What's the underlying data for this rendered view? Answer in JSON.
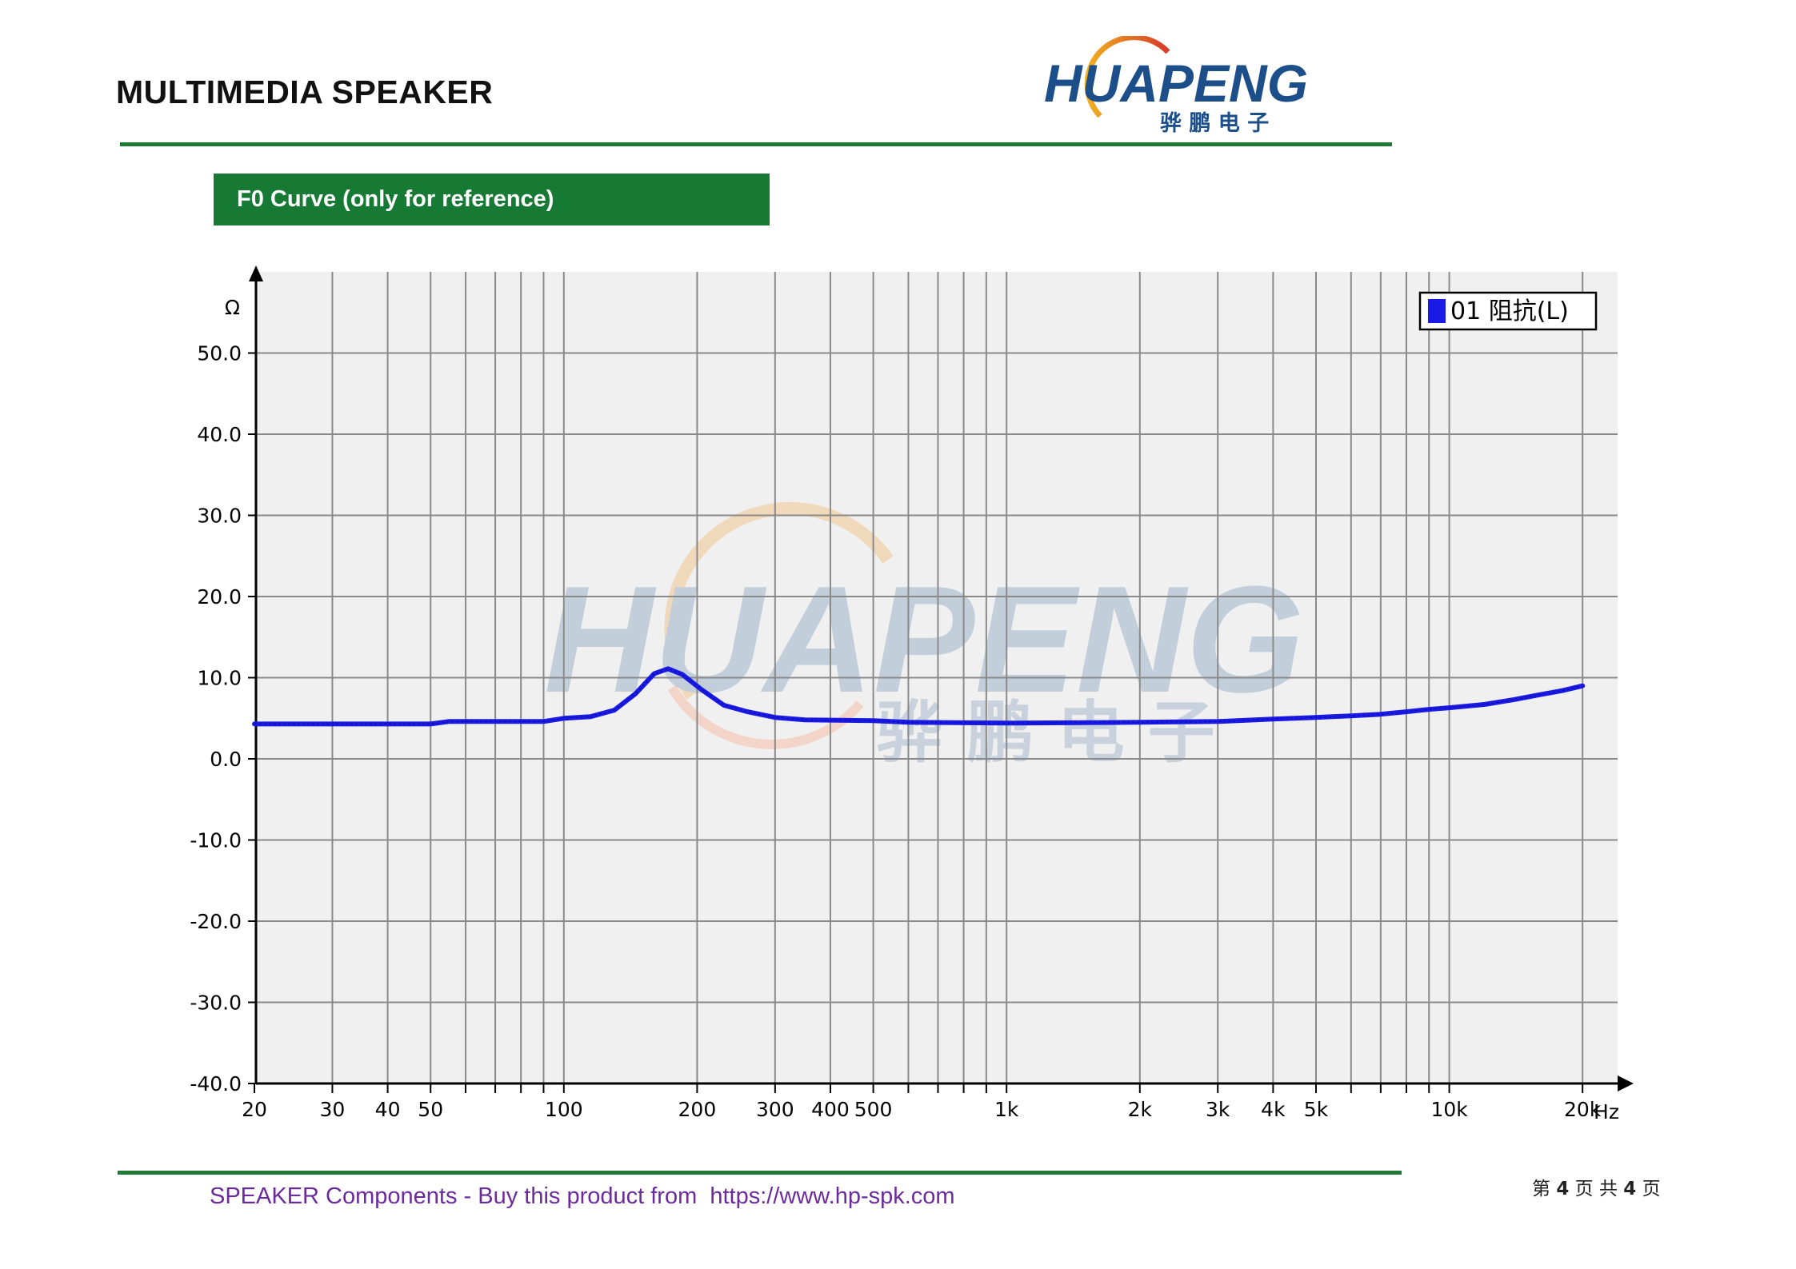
{
  "header": {
    "doc_title": "MULTIMEDIA SPEAKER",
    "logo_text_latin": "HUAPENG",
    "logo_text_cn": "骅 鹏 电 子"
  },
  "section": {
    "title": "F0 Curve (only for reference)"
  },
  "chart_data": {
    "type": "line",
    "x_scale": "log",
    "xlabel": "Hz",
    "ylabel": "Ω",
    "xlim": [
      20,
      24000
    ],
    "ylim": [
      -40,
      60
    ],
    "x_ticks": [
      {
        "value": 20,
        "label": "20"
      },
      {
        "value": 30,
        "label": "30"
      },
      {
        "value": 40,
        "label": "40"
      },
      {
        "value": 50,
        "label": "50"
      },
      {
        "value": 100,
        "label": "100"
      },
      {
        "value": 200,
        "label": "200"
      },
      {
        "value": 300,
        "label": "300"
      },
      {
        "value": 400,
        "label": "400"
      },
      {
        "value": 500,
        "label": "500"
      },
      {
        "value": 1000,
        "label": "1k"
      },
      {
        "value": 2000,
        "label": "2k"
      },
      {
        "value": 3000,
        "label": "3k"
      },
      {
        "value": 4000,
        "label": "4k"
      },
      {
        "value": 5000,
        "label": "5k"
      },
      {
        "value": 10000,
        "label": "10k"
      },
      {
        "value": 20000,
        "label": "20k"
      }
    ],
    "x_minor_gridlines": [
      60,
      70,
      80,
      90,
      600,
      700,
      800,
      900,
      6000,
      7000,
      8000,
      9000
    ],
    "y_ticks": [
      {
        "value": 50,
        "label": "50.0"
      },
      {
        "value": 40,
        "label": "40.0"
      },
      {
        "value": 30,
        "label": "30.0"
      },
      {
        "value": 20,
        "label": "20.0"
      },
      {
        "value": 10,
        "label": "10.0"
      },
      {
        "value": 0,
        "label": "0.0"
      },
      {
        "value": -10,
        "label": "-10.0"
      },
      {
        "value": -20,
        "label": "-20.0"
      },
      {
        "value": -30,
        "label": "-30.0"
      },
      {
        "value": -40,
        "label": "-40.0"
      }
    ],
    "grid": true,
    "legend": {
      "position": "top-right"
    },
    "series": [
      {
        "name": "01 阻抗(L)",
        "color": "#1a1ae6",
        "points": [
          [
            20,
            4.3
          ],
          [
            30,
            4.3
          ],
          [
            40,
            4.3
          ],
          [
            50,
            4.3
          ],
          [
            55,
            4.6
          ],
          [
            70,
            4.6
          ],
          [
            90,
            4.6
          ],
          [
            100,
            5.0
          ],
          [
            115,
            5.2
          ],
          [
            130,
            6.0
          ],
          [
            145,
            8.0
          ],
          [
            160,
            10.5
          ],
          [
            172,
            11.1
          ],
          [
            185,
            10.4
          ],
          [
            205,
            8.5
          ],
          [
            230,
            6.6
          ],
          [
            260,
            5.8
          ],
          [
            300,
            5.1
          ],
          [
            350,
            4.8
          ],
          [
            500,
            4.7
          ],
          [
            600,
            4.5
          ],
          [
            1000,
            4.4
          ],
          [
            2000,
            4.5
          ],
          [
            3000,
            4.6
          ],
          [
            4000,
            4.9
          ],
          [
            5000,
            5.1
          ],
          [
            6000,
            5.3
          ],
          [
            7000,
            5.5
          ],
          [
            8000,
            5.8
          ],
          [
            9000,
            6.1
          ],
          [
            10000,
            6.3
          ],
          [
            12000,
            6.7
          ],
          [
            14000,
            7.3
          ],
          [
            16000,
            7.9
          ],
          [
            18000,
            8.4
          ],
          [
            20000,
            9.0
          ]
        ]
      }
    ]
  },
  "footer": {
    "text": "SPEAKER Components - Buy this product from  https://www.hp-spk.com",
    "page_prefix": "第",
    "page_current": "4",
    "page_middle": "页 共",
    "page_total": "4",
    "page_suffix": "页"
  }
}
